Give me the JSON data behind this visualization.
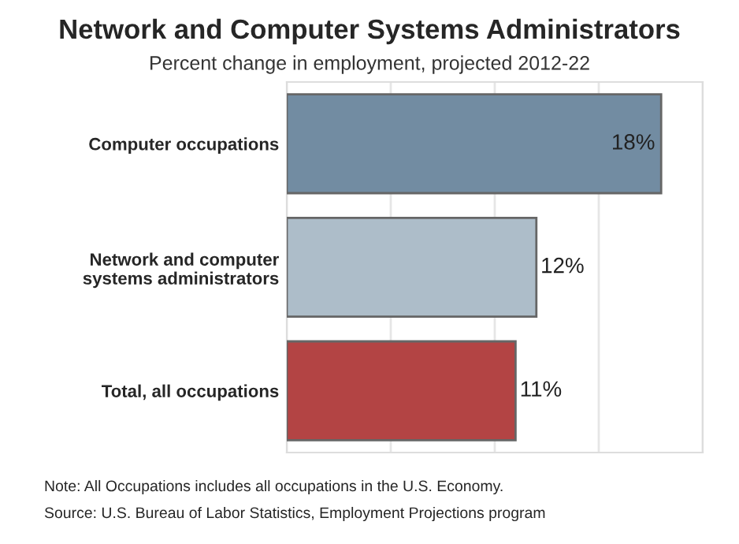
{
  "chart_data": {
    "type": "bar",
    "orientation": "horizontal",
    "title": "Network and Computer Systems Administrators",
    "subtitle": "Percent change in employment, projected 2012-22",
    "categories": [
      "Computer occupations",
      "Network and computer\nsystems administrators",
      "Total, all occupations"
    ],
    "values": [
      18,
      12,
      11
    ],
    "colors": [
      "#728ca2",
      "#adbdc9",
      "#b34444"
    ],
    "value_labels": [
      "18%",
      "12%",
      "11%"
    ],
    "xlim": [
      0,
      20
    ],
    "xticks": [
      {
        "value": 0,
        "label": null
      },
      {
        "value": 5,
        "label": null
      },
      {
        "value": 10,
        "label": null
      },
      {
        "value": 15,
        "label": null
      },
      {
        "value": 20,
        "label": null
      }
    ],
    "grid": "x",
    "tick_labels": "y",
    "annotations": [
      "Note: All Occupations includes all occupations in the U.S. Economy.",
      "Source: U.S. Bureau of Labor Statistics, Employment Projections program"
    ]
  }
}
